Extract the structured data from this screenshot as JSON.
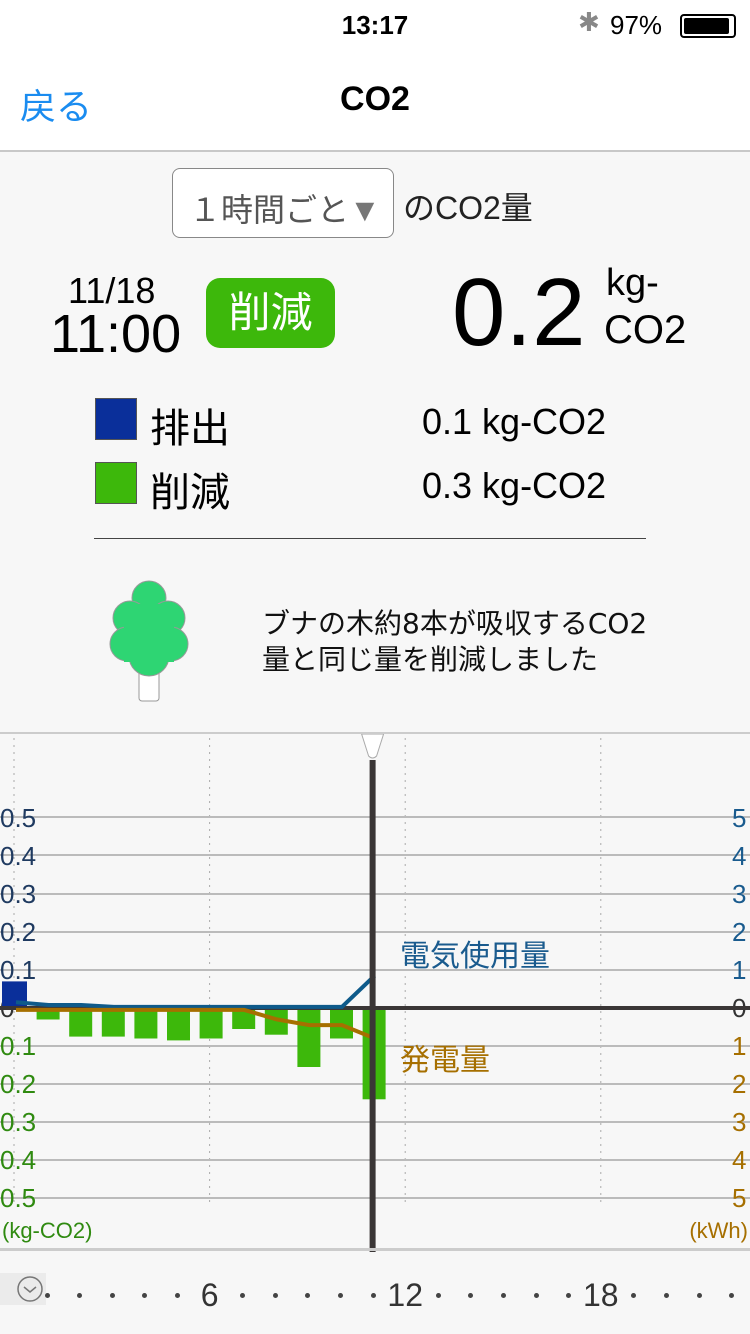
{
  "status_bar": {
    "time": "13:17",
    "battery_percent": "97%",
    "battery_level": 0.97,
    "icons": [
      "bluetooth-icon",
      "battery-icon"
    ]
  },
  "nav": {
    "back_label": "戻る",
    "title": "CO2"
  },
  "period": {
    "selected": "１時間ごと",
    "arrow": "▼",
    "suffix": "のCO2量"
  },
  "summary": {
    "date": "11/18",
    "time": "11:00",
    "badge": "削減",
    "value": "0.2",
    "unit_line1": "kg-",
    "unit_line2": "CO2",
    "badge_color": "#3db80b"
  },
  "legend": [
    {
      "label": "排出",
      "value": "0.1 kg-CO2",
      "color": "#0a2f9a"
    },
    {
      "label": "削減",
      "value": "0.3 kg-CO2",
      "color": "#3db80b"
    }
  ],
  "message": {
    "line1": "ブナの木約8本が吸収するCO2",
    "line2": "量と同じ量を削減しました",
    "icon": "tree-icon"
  },
  "chart_data": {
    "type": "bar",
    "x_unit": "hour",
    "x_ticks": [
      "6",
      "12",
      "18"
    ],
    "x": [
      0,
      1,
      2,
      3,
      4,
      5,
      6,
      7,
      8,
      9,
      10,
      11
    ],
    "selected_hour": 11,
    "left_axis": {
      "label": "(kg-CO2)",
      "ticks_up": [
        "0.5",
        "0.4",
        "0.3",
        "0.2",
        "0.1"
      ],
      "zero": "0",
      "ticks_down": [
        "0.1",
        "0.2",
        "0.3",
        "0.4",
        "0.5"
      ],
      "range": [
        -0.5,
        0.5
      ]
    },
    "right_axis": {
      "label": "(kWh)",
      "ticks_up": [
        "5",
        "4",
        "3",
        "2",
        "1"
      ],
      "zero": "0",
      "ticks_down": [
        "1",
        "2",
        "3",
        "4",
        "5"
      ],
      "range": [
        -5,
        5
      ]
    },
    "series": [
      {
        "name": "排出",
        "kind": "bar",
        "color": "#0a2f9a",
        "values": [
          0.07,
          0,
          0,
          0,
          0,
          0,
          0,
          0,
          0,
          0,
          0,
          0
        ]
      },
      {
        "name": "削減",
        "kind": "bar",
        "color": "#3db80b",
        "values": [
          0,
          0.025,
          0.07,
          0.07,
          0.075,
          0.08,
          0.075,
          0.05,
          0.065,
          0.15,
          0.075,
          0.235
        ]
      },
      {
        "name": "電気使用量",
        "kind": "line",
        "color": "#0e5a8a",
        "values": [
          0.15,
          0.08,
          0.08,
          0.03,
          0.03,
          0.03,
          0.03,
          0.03,
          0.03,
          0.03,
          0.03,
          0.85
        ]
      },
      {
        "name": "発電量",
        "kind": "line",
        "color": "#a66f00",
        "values": [
          0.05,
          0.05,
          0.05,
          0.05,
          0.05,
          0.05,
          0.05,
          0.05,
          0.3,
          0.45,
          0.45,
          0.8
        ]
      }
    ],
    "grid": true
  }
}
